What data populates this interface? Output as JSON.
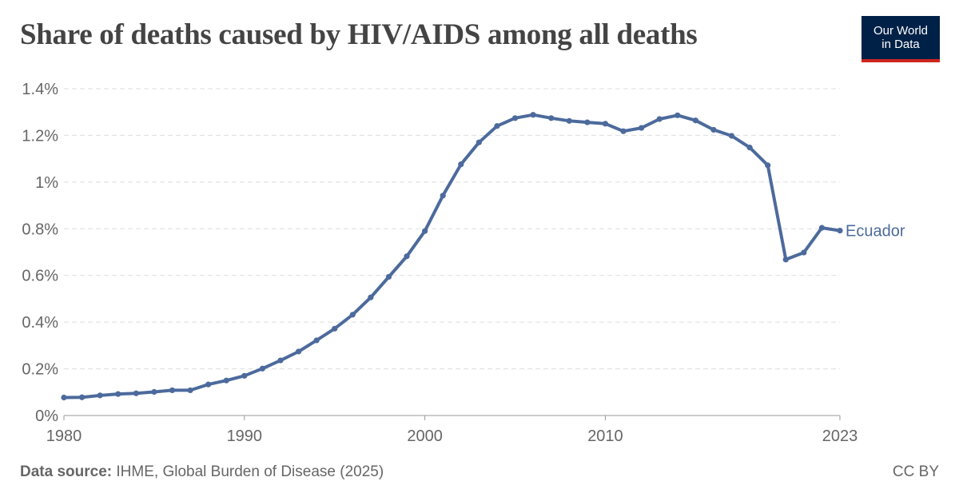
{
  "header": {
    "title": "Share of deaths caused by HIV/AIDS among all deaths",
    "logo_line1": "Our World",
    "logo_line2": "in Data"
  },
  "footer": {
    "source_label": "Data source:",
    "source_text": "IHME, Global Burden of Disease (2025)",
    "license": "CC BY"
  },
  "colors": {
    "series": "#4c6a9c",
    "grid": "#dddddd",
    "logo_bg": "#002147",
    "logo_accent": "#ce261e"
  },
  "chart_data": {
    "type": "line",
    "title": "Share of deaths caused by HIV/AIDS among all deaths",
    "y_ticks": [
      {
        "value": 0,
        "label": "0%"
      },
      {
        "value": 0.2,
        "label": "0.2%"
      },
      {
        "value": 0.4,
        "label": "0.4%"
      },
      {
        "value": 0.6,
        "label": "0.6%"
      },
      {
        "value": 0.8,
        "label": "0.8%"
      },
      {
        "value": 1.0,
        "label": "1%"
      },
      {
        "value": 1.2,
        "label": "1.2%"
      },
      {
        "value": 1.4,
        "label": "1.4%"
      }
    ],
    "x_ticks": [
      {
        "value": 1980,
        "label": "1980"
      },
      {
        "value": 1990,
        "label": "1990"
      },
      {
        "value": 2000,
        "label": "2000"
      },
      {
        "value": 2010,
        "label": "2010"
      },
      {
        "value": 2023,
        "label": "2023"
      }
    ],
    "xlim": [
      1980,
      2023
    ],
    "ylim": [
      0,
      1.4
    ],
    "grid": true,
    "series": [
      {
        "name": "Ecuador",
        "x": [
          1980,
          1981,
          1982,
          1983,
          1984,
          1985,
          1986,
          1987,
          1988,
          1989,
          1990,
          1991,
          1992,
          1993,
          1994,
          1995,
          1996,
          1997,
          1998,
          1999,
          2000,
          2001,
          2002,
          2003,
          2004,
          2005,
          2006,
          2007,
          2008,
          2009,
          2010,
          2011,
          2012,
          2013,
          2014,
          2015,
          2016,
          2017,
          2018,
          2019,
          2020,
          2021,
          2022,
          2023
        ],
        "values": [
          0.077,
          0.078,
          0.086,
          0.092,
          0.095,
          0.101,
          0.108,
          0.108,
          0.133,
          0.15,
          0.17,
          0.201,
          0.236,
          0.274,
          0.322,
          0.372,
          0.432,
          0.506,
          0.594,
          0.682,
          0.79,
          0.942,
          1.076,
          1.17,
          1.24,
          1.274,
          1.288,
          1.274,
          1.262,
          1.256,
          1.25,
          1.218,
          1.232,
          1.27,
          1.286,
          1.264,
          1.224,
          1.198,
          1.148,
          1.072,
          0.668,
          0.698,
          0.804,
          0.792
        ]
      }
    ]
  }
}
